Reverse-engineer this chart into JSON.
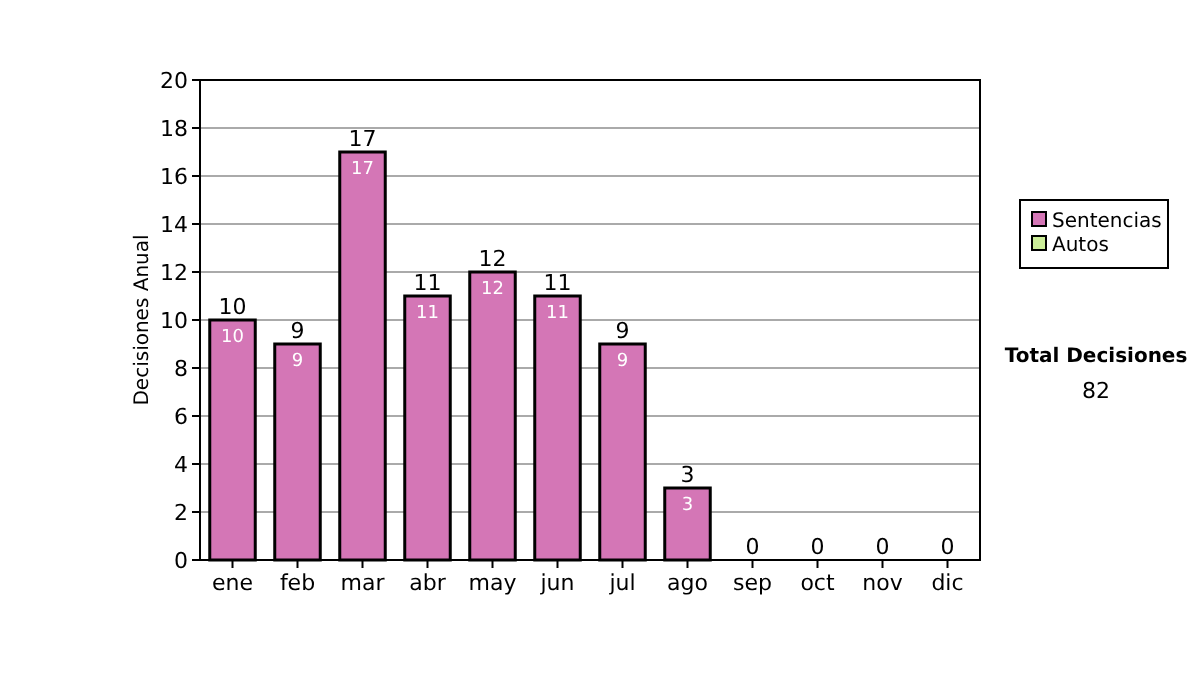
{
  "chart_data": {
    "type": "bar",
    "ylabel": "Decisiones Anual",
    "categories": [
      "ene",
      "feb",
      "mar",
      "abr",
      "may",
      "jun",
      "jul",
      "ago",
      "sep",
      "oct",
      "nov",
      "dic"
    ],
    "series": [
      {
        "name": "Sentencias",
        "color": "#d476b6",
        "values": [
          10,
          9,
          17,
          11,
          12,
          11,
          9,
          3,
          0,
          0,
          0,
          0
        ],
        "value_labels": [
          "10",
          "9",
          "17",
          "11",
          "12",
          "11",
          "9",
          "3",
          null,
          null,
          null,
          null
        ]
      },
      {
        "name": "Autos",
        "color": "#ccee99",
        "values": [
          0,
          0,
          0,
          0,
          0,
          0,
          0,
          0,
          0,
          0,
          0,
          0
        ]
      }
    ],
    "stacked": true,
    "totals": [
      "10",
      "9",
      "17",
      "11",
      "12",
      "11",
      "9",
      "3",
      "0",
      "0",
      "0",
      "0"
    ],
    "ylim": [
      0,
      20
    ],
    "yticks": [
      0,
      2,
      4,
      6,
      8,
      10,
      12,
      14,
      16,
      18,
      20
    ],
    "grid": "y",
    "legend": "right",
    "annotations": [
      "Total Decisiones",
      "82"
    ]
  }
}
